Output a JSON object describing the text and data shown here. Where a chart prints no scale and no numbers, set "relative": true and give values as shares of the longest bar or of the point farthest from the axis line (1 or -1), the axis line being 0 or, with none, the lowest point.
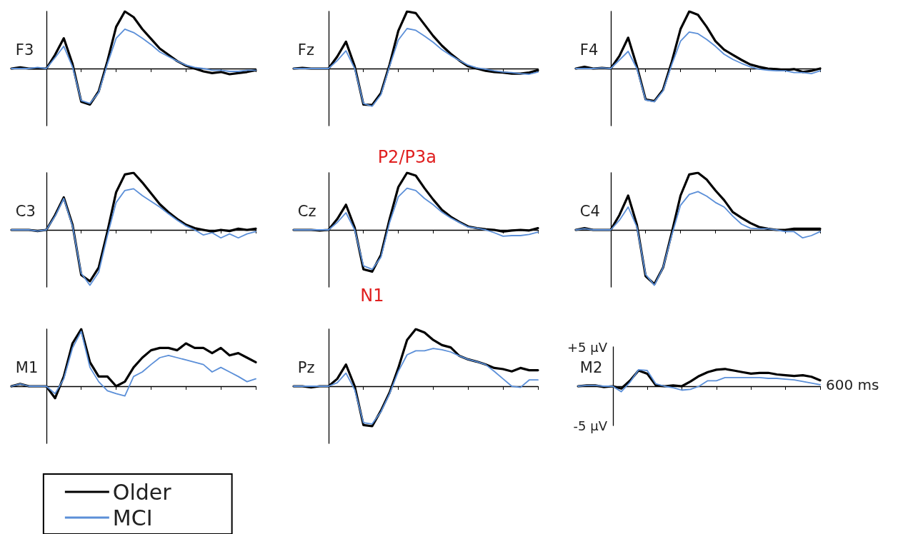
{
  "chart_data": [
    {
      "type": "line",
      "title": "F3",
      "relative": true,
      "categories": [
        null,
        null,
        null,
        null,
        null,
        null,
        null,
        null,
        null,
        null,
        null,
        null,
        null,
        null,
        null,
        null,
        null,
        null,
        null,
        null,
        null,
        null,
        null,
        null,
        null,
        null,
        null,
        null,
        null
      ],
      "marker": "none",
      "line_style": "solid",
      "series": [
        {
          "color": "#000000",
          "values": [
            0,
            0.02,
            0,
            0,
            0,
            0.24,
            0.53,
            0.08,
            -0.58,
            -0.63,
            -0.4,
            0.13,
            0.73,
            1,
            0.9,
            0.69,
            0.52,
            0.35,
            0.24,
            0.13,
            0.05,
            0,
            -0.05,
            -0.08,
            -0.06,
            -0.1,
            -0.08,
            -0.06,
            -0.03
          ]
        },
        {
          "color": "#5b8fd8",
          "values": [
            0,
            0,
            0,
            0.02,
            0,
            0.19,
            0.39,
            0.03,
            -0.56,
            -0.61,
            -0.42,
            0.08,
            0.53,
            0.69,
            0.63,
            0.53,
            0.42,
            0.29,
            0.21,
            0.13,
            0.06,
            0.02,
            0,
            -0.03,
            -0.03,
            -0.05,
            -0.05,
            -0.03,
            -0.03
          ]
        }
      ]
    },
    {
      "type": "line",
      "title": "Fz",
      "relative": true,
      "categories": [
        null,
        null,
        null,
        null,
        null,
        null,
        null,
        null,
        null,
        null,
        null,
        null,
        null,
        null,
        null,
        null,
        null,
        null,
        null,
        null,
        null,
        null,
        null,
        null,
        null,
        null,
        null,
        null,
        null
      ],
      "marker": "none",
      "line_style": "solid",
      "series": [
        {
          "color": "#000000",
          "values": [
            0,
            0.01,
            0,
            0,
            0,
            0.21,
            0.47,
            0.04,
            -0.63,
            -0.64,
            -0.43,
            0.07,
            0.66,
            1,
            0.97,
            0.77,
            0.57,
            0.4,
            0.26,
            0.14,
            0.04,
            0,
            -0.04,
            -0.06,
            -0.07,
            -0.09,
            -0.09,
            -0.07,
            -0.03
          ]
        },
        {
          "color": "#5b8fd8",
          "values": [
            0,
            0,
            0,
            0,
            0,
            0.14,
            0.31,
            0,
            -0.61,
            -0.66,
            -0.46,
            0.04,
            0.5,
            0.7,
            0.67,
            0.57,
            0.46,
            0.33,
            0.23,
            0.14,
            0.06,
            0.01,
            -0.01,
            -0.04,
            -0.06,
            -0.07,
            -0.09,
            -0.1,
            -0.06
          ]
        }
      ]
    },
    {
      "type": "line",
      "title": "F4",
      "relative": true,
      "categories": [
        null,
        null,
        null,
        null,
        null,
        null,
        null,
        null,
        null,
        null,
        null,
        null,
        null,
        null,
        null,
        null,
        null,
        null,
        null,
        null,
        null,
        null,
        null,
        null,
        null,
        null,
        null,
        null,
        null
      ],
      "marker": "none",
      "line_style": "solid",
      "series": [
        {
          "color": "#000000",
          "values": [
            0,
            0.03,
            0,
            0.01,
            0,
            0.22,
            0.54,
            0.04,
            -0.54,
            -0.57,
            -0.37,
            0.12,
            0.69,
            1,
            0.94,
            0.73,
            0.48,
            0.33,
            0.24,
            0.15,
            0.07,
            0.03,
            0,
            -0.01,
            -0.03,
            -0.01,
            -0.06,
            -0.04,
            0
          ]
        },
        {
          "color": "#5b8fd8",
          "values": [
            0,
            0,
            0,
            0.01,
            0,
            0.15,
            0.3,
            0,
            -0.55,
            -0.58,
            -0.39,
            0.07,
            0.48,
            0.64,
            0.61,
            0.51,
            0.39,
            0.25,
            0.16,
            0.09,
            0.03,
            -0.01,
            -0.03,
            -0.04,
            -0.04,
            -0.07,
            -0.07,
            -0.09,
            -0.04
          ]
        }
      ]
    },
    {
      "type": "line",
      "title": "C3",
      "relative": true,
      "categories": [
        null,
        null,
        null,
        null,
        null,
        null,
        null,
        null,
        null,
        null,
        null,
        null,
        null,
        null,
        null,
        null,
        null,
        null,
        null,
        null,
        null,
        null,
        null,
        null,
        null,
        null,
        null,
        null,
        null
      ],
      "marker": "none",
      "line_style": "solid",
      "series": [
        {
          "color": "#000000",
          "values": [
            0,
            0,
            0,
            -0.02,
            0,
            0.26,
            0.57,
            0.09,
            -0.79,
            -0.9,
            -0.66,
            -0.03,
            0.66,
            0.97,
            1,
            0.83,
            0.64,
            0.45,
            0.31,
            0.19,
            0.09,
            0.03,
            0,
            -0.03,
            0,
            -0.02,
            0.02,
            0,
            0.02
          ]
        },
        {
          "color": "#5b8fd8",
          "values": [
            0,
            0,
            0,
            -0.02,
            0,
            0.24,
            0.55,
            0.07,
            -0.76,
            -0.97,
            -0.74,
            -0.1,
            0.48,
            0.69,
            0.72,
            0.6,
            0.5,
            0.4,
            0.28,
            0.17,
            0.07,
            0,
            -0.09,
            -0.05,
            -0.14,
            -0.07,
            -0.14,
            -0.07,
            -0.03
          ]
        }
      ]
    },
    {
      "type": "line",
      "title": "Cz",
      "relative": true,
      "categories": [
        null,
        null,
        null,
        null,
        null,
        null,
        null,
        null,
        null,
        null,
        null,
        null,
        null,
        null,
        null,
        null,
        null,
        null,
        null,
        null,
        null,
        null,
        null,
        null,
        null,
        null,
        null,
        null,
        null
      ],
      "marker": "none",
      "line_style": "solid",
      "annotations": [
        {
          "text": "P2/P3a",
          "y": 1
        },
        {
          "text": "N1",
          "y": -0.73
        }
      ],
      "series": [
        {
          "color": "#000000",
          "values": [
            0,
            0,
            0,
            -0.01,
            0,
            0.19,
            0.44,
            0.04,
            -0.69,
            -0.73,
            -0.44,
            0.19,
            0.75,
            1,
            0.95,
            0.73,
            0.53,
            0.35,
            0.23,
            0.14,
            0.06,
            0.03,
            0.01,
            0,
            -0.03,
            -0.01,
            0,
            -0.01,
            0.03
          ]
        },
        {
          "color": "#5b8fd8",
          "values": [
            0,
            0,
            0,
            0,
            0,
            0.13,
            0.3,
            0,
            -0.63,
            -0.69,
            -0.48,
            0.13,
            0.58,
            0.73,
            0.69,
            0.55,
            0.44,
            0.31,
            0.21,
            0.13,
            0.05,
            0.03,
            0,
            -0.05,
            -0.11,
            -0.1,
            -0.1,
            -0.08,
            -0.04
          ]
        }
      ]
    },
    {
      "type": "line",
      "title": "C4",
      "relative": true,
      "categories": [
        null,
        null,
        null,
        null,
        null,
        null,
        null,
        null,
        null,
        null,
        null,
        null,
        null,
        null,
        null,
        null,
        null,
        null,
        null,
        null,
        null,
        null,
        null,
        null,
        null,
        null,
        null,
        null,
        null
      ],
      "marker": "none",
      "line_style": "solid",
      "series": [
        {
          "color": "#000000",
          "values": [
            0,
            0.03,
            0,
            0,
            0,
            0.26,
            0.6,
            0.09,
            -0.81,
            -0.95,
            -0.66,
            -0.05,
            0.6,
            0.97,
            1,
            0.88,
            0.69,
            0.52,
            0.31,
            0.21,
            0.12,
            0.05,
            0.02,
            0,
            0,
            0.02,
            0.02,
            0.02,
            0.02
          ]
        },
        {
          "color": "#5b8fd8",
          "values": [
            0,
            0.02,
            0,
            0,
            0,
            0.17,
            0.4,
            0.05,
            -0.78,
            -0.97,
            -0.66,
            -0.09,
            0.43,
            0.62,
            0.67,
            0.59,
            0.48,
            0.4,
            0.24,
            0.1,
            0.03,
            0.02,
            0.02,
            0,
            -0.03,
            -0.03,
            -0.14,
            -0.1,
            -0.03
          ]
        }
      ]
    },
    {
      "type": "line",
      "title": "M1",
      "relative": true,
      "categories": [
        null,
        null,
        null,
        null,
        null,
        null,
        null,
        null,
        null,
        null,
        null,
        null,
        null,
        null,
        null,
        null,
        null,
        null,
        null,
        null,
        null,
        null,
        null,
        null,
        null,
        null,
        null,
        null,
        null
      ],
      "marker": "none",
      "line_style": "solid",
      "legend": "bottom left",
      "series": [
        {
          "name": "Older",
          "color": "#000000",
          "values": [
            0,
            0.04,
            0,
            0,
            0,
            -0.21,
            0.17,
            0.75,
            1,
            0.42,
            0.17,
            0.17,
            0,
            0.08,
            0.33,
            0.5,
            0.63,
            0.67,
            0.67,
            0.63,
            0.75,
            0.67,
            0.67,
            0.58,
            0.67,
            0.54,
            0.58,
            0.5,
            0.42
          ]
        },
        {
          "name": "MCI",
          "color": "#5b8fd8",
          "values": [
            0,
            0.04,
            0,
            0,
            0,
            -0.13,
            0.13,
            0.67,
            0.96,
            0.33,
            0.08,
            -0.08,
            -0.13,
            -0.17,
            0.17,
            0.25,
            0.38,
            0.5,
            0.54,
            0.5,
            0.46,
            0.42,
            0.38,
            0.25,
            0.33,
            0.25,
            0.17,
            0.08,
            0.13
          ]
        }
      ]
    },
    {
      "type": "line",
      "title": "Pz",
      "relative": true,
      "categories": [
        null,
        null,
        null,
        null,
        null,
        null,
        null,
        null,
        null,
        null,
        null,
        null,
        null,
        null,
        null,
        null,
        null,
        null,
        null,
        null,
        null,
        null,
        null,
        null,
        null,
        null,
        null,
        null,
        null
      ],
      "marker": "none",
      "line_style": "solid",
      "series": [
        {
          "color": "#000000",
          "values": [
            0,
            0,
            -0.02,
            0,
            0,
            0.13,
            0.38,
            0,
            -0.68,
            -0.7,
            -0.43,
            -0.11,
            0.32,
            0.81,
            1,
            0.94,
            0.81,
            0.72,
            0.68,
            0.53,
            0.47,
            0.43,
            0.38,
            0.32,
            0.3,
            0.26,
            0.32,
            0.28,
            0.28
          ]
        },
        {
          "color": "#5b8fd8",
          "values": [
            0,
            0,
            0,
            0,
            0,
            0.06,
            0.23,
            -0.06,
            -0.64,
            -0.66,
            -0.45,
            -0.13,
            0.26,
            0.55,
            0.62,
            0.62,
            0.66,
            0.64,
            0.6,
            0.53,
            0.47,
            0.43,
            0.38,
            0.26,
            0.13,
            0,
            -0.02,
            0.11,
            0.11
          ]
        }
      ]
    },
    {
      "type": "line",
      "title": "M2",
      "categories": [
        null,
        null,
        null,
        null,
        null,
        null,
        null,
        null,
        null,
        null,
        null,
        null,
        null,
        null,
        null,
        null,
        null,
        null,
        null,
        null,
        null,
        null,
        null,
        null,
        null,
        null,
        null,
        null,
        null
      ],
      "ylim": [
        -5,
        5
      ],
      "yticks": [
        {
          "value": 5,
          "label": "+5 µV"
        },
        {
          "value": -5,
          "label": "-5 µV"
        }
      ],
      "marker": "none",
      "line_style": "solid",
      "annotations": [
        "600 ms"
      ],
      "series": [
        {
          "color": "#000000",
          "values": [
            0,
            0.1,
            0.1,
            -0.1,
            0,
            -0.3,
            0.7,
            2.0,
            1.6,
            0.1,
            0,
            0.1,
            0,
            0.6,
            1.3,
            1.8,
            2.1,
            2.2,
            2.0,
            1.8,
            1.6,
            1.7,
            1.7,
            1.5,
            1.4,
            1.3,
            1.4,
            1.2,
            0.75
          ]
        },
        {
          "color": "#5b8fd8",
          "values": [
            0,
            0.1,
            0.1,
            0,
            0,
            -0.7,
            0.5,
            2.1,
            2.0,
            0.3,
            0,
            -0.2,
            -0.5,
            -0.4,
            0,
            0.7,
            0.7,
            1.1,
            1.1,
            1.1,
            1.1,
            1.1,
            1.0,
            1.0,
            0.9,
            0.8,
            0.6,
            0.4,
            0.2
          ]
        }
      ]
    }
  ]
}
